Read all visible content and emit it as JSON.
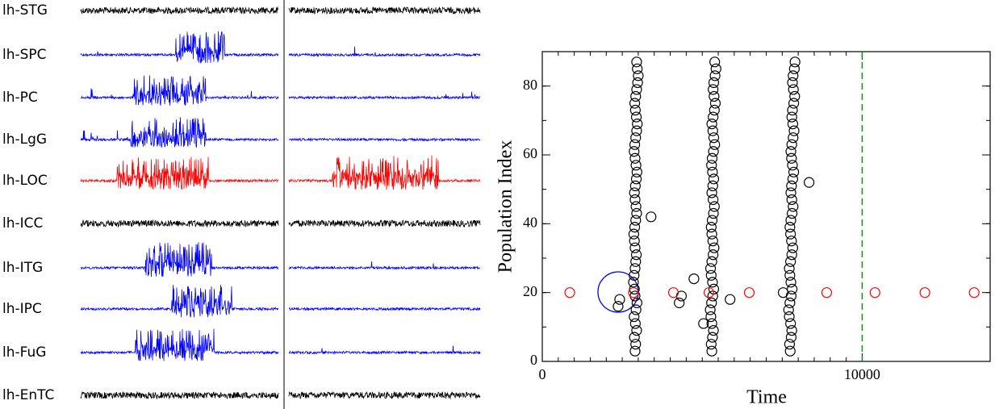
{
  "traces": {
    "labels": [
      "lh-STG",
      "lh-SPC",
      "lh-PC",
      "lh-LgG",
      "lh-LOC",
      "lh-ICC",
      "lh-ITG",
      "lh-IPC",
      "lh-FuG",
      "lh-EnTC"
    ],
    "colors": [
      "#000000",
      "#0000ff",
      "#0000ff",
      "#0000ff",
      "#ff0000",
      "#000000",
      "#0000ff",
      "#0000ff",
      "#0000ff",
      "#000000"
    ]
  },
  "chart_data": {
    "type": "scatter",
    "xlabel": "Time",
    "ylabel": "Population Index",
    "xlim": [
      0,
      14000
    ],
    "ylim": [
      0,
      90
    ],
    "xticks": [
      0,
      10000
    ],
    "yticks": [
      0,
      20,
      40,
      60,
      80
    ],
    "vline": {
      "value": 10000,
      "color": "#109010"
    },
    "series": [
      {
        "color": "#000000",
        "x": [
          2900,
          2920,
          2880,
          2950,
          2910,
          2870,
          2930,
          2960,
          2900,
          2880,
          2850,
          2870,
          2900,
          2920,
          2940,
          2900,
          2880,
          2860,
          2890,
          2920,
          2950,
          2930,
          2900,
          2880,
          2910,
          2940,
          2960,
          2930,
          2900,
          2870,
          2890,
          2920,
          2950,
          2970,
          2940,
          2910,
          2890,
          2920,
          2950,
          2980,
          3000,
          2970,
          2950,
          5300,
          5280,
          5320,
          5350,
          5300,
          5270,
          5250,
          5290,
          5330,
          5360,
          5320,
          5280,
          5260,
          5300,
          5340,
          5370,
          5330,
          5300,
          5280,
          5310,
          5350,
          5380,
          5340,
          5300,
          5330,
          5360,
          5320,
          5290,
          5310,
          5350,
          5390,
          5360,
          5330,
          5300,
          5340,
          5380,
          5410,
          5370,
          5340,
          5360,
          5400,
          5430,
          5390,
          7750,
          7730,
          7780,
          7800,
          7760,
          7720,
          7700,
          7740,
          7780,
          7810,
          7770,
          7740,
          7720,
          7760,
          7800,
          7830,
          7790,
          7760,
          7740,
          7770,
          7810,
          7840,
          7800,
          7770,
          7790,
          7830,
          7860,
          7820,
          7790,
          7770,
          7800,
          7840,
          7870,
          7830,
          7800,
          7820,
          7860,
          7890,
          7850,
          7820,
          7840,
          7880,
          7900,
          3400,
          2370,
          2420,
          4280,
          4350,
          4740,
          5040,
          5870,
          7530,
          8340
        ],
        "y": [
          3,
          5,
          7,
          9,
          11,
          13,
          15,
          17,
          19,
          21,
          23,
          25,
          27,
          29,
          31,
          33,
          35,
          37,
          39,
          41,
          43,
          45,
          47,
          49,
          51,
          53,
          55,
          57,
          59,
          61,
          63,
          65,
          67,
          69,
          71,
          73,
          75,
          77,
          79,
          81,
          83,
          85,
          87,
          3,
          5,
          7,
          9,
          11,
          13,
          15,
          17,
          19,
          21,
          23,
          25,
          27,
          29,
          31,
          33,
          35,
          37,
          39,
          41,
          43,
          45,
          47,
          49,
          51,
          53,
          55,
          57,
          59,
          61,
          63,
          65,
          67,
          69,
          71,
          73,
          75,
          77,
          79,
          81,
          83,
          85,
          87,
          3,
          5,
          7,
          9,
          11,
          13,
          15,
          17,
          19,
          21,
          23,
          25,
          27,
          29,
          31,
          33,
          35,
          37,
          39,
          41,
          43,
          45,
          47,
          49,
          51,
          53,
          55,
          57,
          59,
          61,
          63,
          65,
          67,
          69,
          71,
          73,
          75,
          77,
          79,
          81,
          83,
          85,
          87,
          42,
          16,
          18,
          17,
          19,
          24,
          11,
          18,
          20,
          52
        ]
      },
      {
        "color": "#ff0000",
        "x": [
          860,
          2850,
          4100,
          5210,
          6470,
          8890,
          10400,
          11960,
          13500
        ],
        "y": [
          20,
          20,
          20,
          20,
          20,
          20,
          20,
          20,
          20
        ]
      }
    ]
  }
}
